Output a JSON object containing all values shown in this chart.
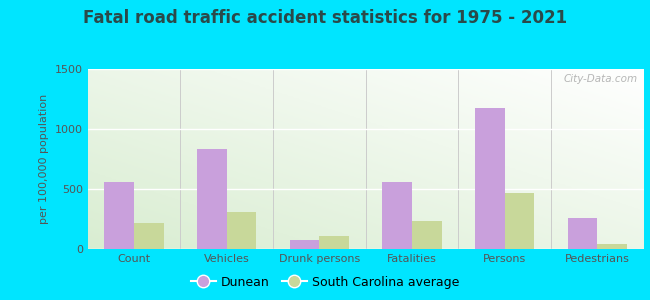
{
  "title": "Fatal road traffic accident statistics for 1975 - 2021",
  "ylabel": "per 100,000 population",
  "categories": [
    "Count",
    "Vehicles",
    "Drunk persons",
    "Fatalities",
    "Persons",
    "Pedestrians"
  ],
  "dunean": [
    560,
    830,
    75,
    560,
    1175,
    260
  ],
  "sc_avg": [
    220,
    310,
    105,
    235,
    470,
    45
  ],
  "dunean_color": "#c9a0dc",
  "sc_avg_color": "#c8d89a",
  "ylim": [
    0,
    1500
  ],
  "yticks": [
    0,
    500,
    1000,
    1500
  ],
  "bg_top_right": "#ffffff",
  "bg_bottom_left": "#d8edcc",
  "outer_bg": "#00e5ff",
  "bar_width": 0.32,
  "legend_labels": [
    "Dunean",
    "South Carolina average"
  ],
  "watermark": "City-Data.com",
  "title_color": "#2a4a4a",
  "axis_color": "#555555"
}
